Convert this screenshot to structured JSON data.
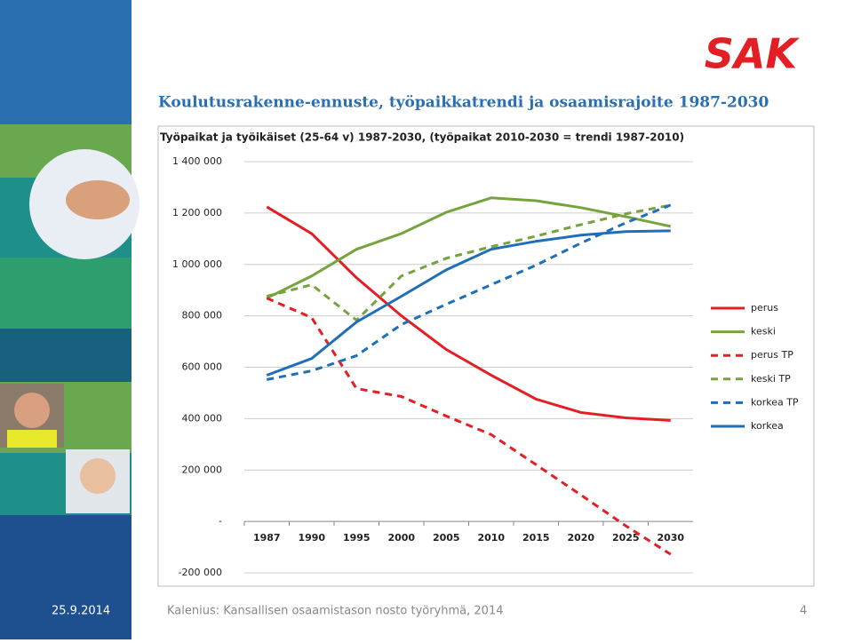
{
  "slide": {
    "logo": "SAK",
    "title": "Koulutusrakenne-ennuste, työpaikkatrendi ja osaamisrajoite 1987-2030",
    "date": "25.9.2014",
    "source": "Kalenius: Kansallisen osaamistason nosto työryhmä, 2014",
    "page": "4"
  },
  "chart_data": {
    "type": "line",
    "title": "Työpaikat ja työikäiset (25-64 v) 1987-2030, (työpaikat 2010-2030 = trendi 1987-2010)",
    "categories": [
      "1987",
      "1990",
      "1995",
      "2000",
      "2005",
      "2010",
      "2015",
      "2020",
      "2025",
      "2030"
    ],
    "ylim": [
      -200000,
      1400000
    ],
    "yticks": [
      {
        "value": -200000,
        "label": "-200 000"
      },
      {
        "value": 0,
        "label": "-"
      },
      {
        "value": 200000,
        "label": "200 000"
      },
      {
        "value": 400000,
        "label": "400 000"
      },
      {
        "value": 600000,
        "label": "600 000"
      },
      {
        "value": 800000,
        "label": "800 000"
      },
      {
        "value": 1000000,
        "label": "1 000 000"
      },
      {
        "value": 1200000,
        "label": "1 200 000"
      },
      {
        "value": 1400000,
        "label": "1 400 000"
      }
    ],
    "grid": true,
    "legend": "right",
    "series": [
      {
        "name": "perus",
        "color": "#e31e24",
        "dashed": false,
        "values": [
          1224000,
          1120000,
          948000,
          800000,
          669000,
          569000,
          476000,
          424000,
          403000,
          393000
        ]
      },
      {
        "name": "keski",
        "color": "#77a33e",
        "dashed": false,
        "values": [
          869000,
          955000,
          1059000,
          1120000,
          1203000,
          1259000,
          1248000,
          1221000,
          1186000,
          1148000
        ]
      },
      {
        "name": "perus TP",
        "color": "#e31e24",
        "dashed": true,
        "values": [
          869000,
          793000,
          517000,
          486000,
          410000,
          338000,
          221000,
          103000,
          -17000,
          -128000
        ]
      },
      {
        "name": "keski TP",
        "color": "#77a33e",
        "dashed": true,
        "values": [
          876000,
          921000,
          783000,
          955000,
          1024000,
          1069000,
          1110000,
          1155000,
          1197000,
          1231000
        ]
      },
      {
        "name": "korkea TP",
        "color": "#1f6fb8",
        "dashed": true,
        "values": [
          552000,
          586000,
          645000,
          766000,
          845000,
          921000,
          997000,
          1083000,
          1162000,
          1231000
        ]
      },
      {
        "name": "korkea",
        "color": "#1f6fb8",
        "dashed": false,
        "values": [
          569000,
          634000,
          776000,
          876000,
          979000,
          1059000,
          1090000,
          1114000,
          1128000,
          1131000
        ]
      }
    ]
  }
}
